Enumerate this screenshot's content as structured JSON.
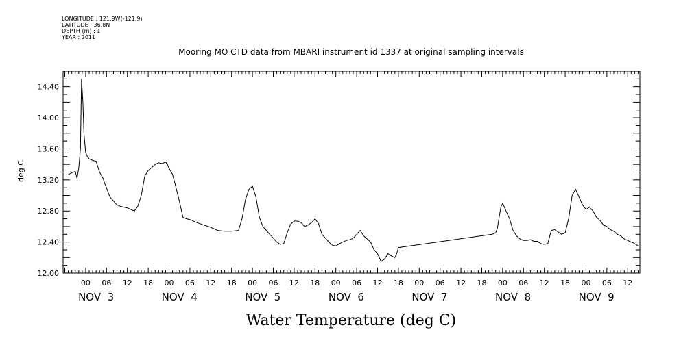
{
  "meta": {
    "longitude": "LONGITUDE : 121.9W(-121.9)",
    "latitude": "LATITUDE : 36.8N",
    "depth": "DEPTH (m) : 1",
    "year": "YEAR : 2011"
  },
  "chart_data": {
    "type": "line",
    "title": "Mooring MO CTD data from MBARI instrument id 1337 at original sampling intervals",
    "xlabel": "Water Temperature (deg C)",
    "ylabel": "deg C",
    "ylim": [
      12.0,
      14.6
    ],
    "yticks": [
      "14.40",
      "14.00",
      "13.60",
      "13.20",
      "12.80",
      "12.40",
      "12.00"
    ],
    "xlim_hours": [
      -6.5,
      159.5
    ],
    "x_hour_ticks": [
      "00",
      "06",
      "12",
      "18"
    ],
    "day_labels": [
      "NOV  3",
      "NOV  4",
      "NOV  5",
      "NOV  6",
      "NOV  7",
      "NOV  8",
      "NOV  9"
    ],
    "series": [
      {
        "x": [
          -5,
          -4,
          -3,
          -2.5,
          -2,
          -1.5,
          -1.2,
          -0.8,
          -0.5,
          0,
          0.5,
          1,
          2,
          3,
          4,
          5,
          5.5,
          6,
          6.5,
          7,
          8,
          9,
          10,
          11,
          12,
          13,
          14,
          15,
          16,
          17,
          18,
          19,
          20,
          21,
          22,
          23,
          23.5,
          24,
          25,
          26,
          27,
          28,
          29,
          30,
          32,
          34,
          36,
          38,
          40,
          42,
          44,
          45,
          46,
          47,
          48,
          49,
          50,
          51,
          52,
          53,
          54,
          55,
          56,
          57,
          58,
          59,
          60,
          61,
          62,
          63,
          64,
          65,
          66,
          67,
          68,
          69,
          70,
          71,
          72,
          73,
          74,
          75,
          76,
          77,
          78,
          79,
          80,
          81,
          82,
          83,
          84,
          85,
          86,
          87,
          88,
          89,
          89.5,
          90,
          117,
          118,
          118.5,
          119,
          119.5,
          120,
          121,
          122,
          123,
          124,
          125,
          126,
          127,
          128,
          129,
          130,
          131,
          132,
          133,
          134,
          135,
          136,
          137,
          138,
          139,
          140,
          141,
          142,
          143,
          144,
          145,
          146,
          147,
          148,
          149,
          150,
          151,
          152,
          153,
          154,
          155,
          156,
          157,
          158,
          159
        ],
        "y": [
          13.27,
          13.29,
          13.31,
          13.22,
          13.35,
          13.6,
          14.5,
          14.2,
          13.8,
          13.55,
          13.5,
          13.47,
          13.45,
          13.44,
          13.3,
          13.22,
          13.15,
          13.1,
          13.03,
          12.98,
          12.93,
          12.88,
          12.86,
          12.85,
          12.84,
          12.82,
          12.8,
          12.86,
          13.0,
          13.25,
          13.32,
          13.36,
          13.4,
          13.42,
          13.41,
          13.43,
          13.4,
          13.35,
          13.27,
          13.1,
          12.92,
          12.72,
          12.7,
          12.69,
          12.65,
          12.62,
          12.59,
          12.55,
          12.54,
          12.54,
          12.55,
          12.7,
          12.95,
          13.08,
          13.12,
          12.98,
          12.72,
          12.6,
          12.55,
          12.5,
          12.45,
          12.4,
          12.37,
          12.38,
          12.52,
          12.63,
          12.67,
          12.67,
          12.65,
          12.6,
          12.62,
          12.65,
          12.7,
          12.64,
          12.5,
          12.45,
          12.4,
          12.36,
          12.35,
          12.38,
          12.4,
          12.42,
          12.43,
          12.45,
          12.5,
          12.55,
          12.48,
          12.44,
          12.4,
          12.3,
          12.25,
          12.15,
          12.18,
          12.25,
          12.22,
          12.2,
          12.25,
          12.33,
          12.5,
          12.52,
          12.58,
          12.72,
          12.85,
          12.9,
          12.8,
          12.7,
          12.55,
          12.48,
          12.44,
          12.42,
          12.42,
          12.43,
          12.41,
          12.41,
          12.38,
          12.37,
          12.38,
          12.55,
          12.56,
          12.53,
          12.5,
          12.52,
          12.7,
          13.0,
          13.08,
          12.98,
          12.88,
          12.82,
          12.85,
          12.8,
          12.72,
          12.68,
          12.62,
          12.6,
          12.56,
          12.54,
          12.5,
          12.48,
          12.44,
          12.42,
          12.4,
          12.38,
          12.35
        ]
      }
    ]
  }
}
